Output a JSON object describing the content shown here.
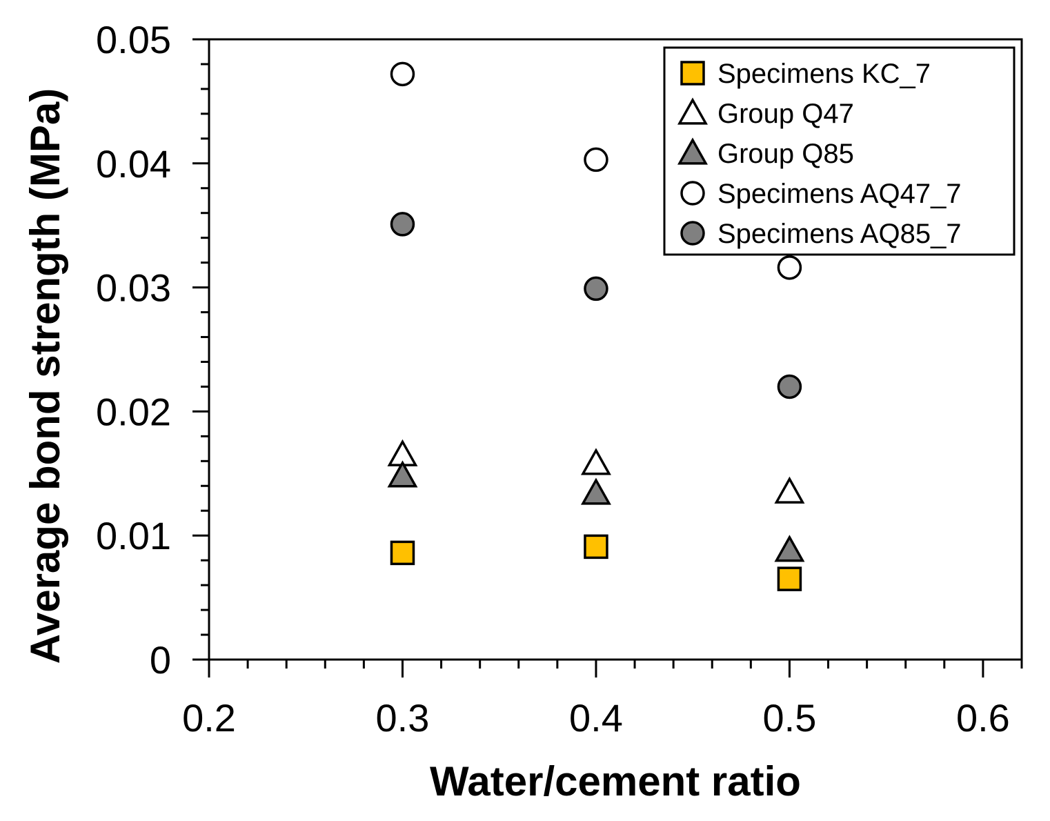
{
  "chart_data": {
    "type": "scatter",
    "title": "",
    "xlabel": "Water/cement ratio",
    "ylabel": "Average bond strength (MPa)",
    "xlim": [
      0.2,
      0.62
    ],
    "ylim": [
      0,
      0.05
    ],
    "x_ticks": [
      "0.2",
      "0.3",
      "0.4",
      "0.5",
      "0.6"
    ],
    "y_ticks": [
      "0",
      "0.01",
      "0.02",
      "0.03",
      "0.04",
      "0.05"
    ],
    "x_tick_values": [
      0.2,
      0.3,
      0.4,
      0.5,
      0.6
    ],
    "y_tick_values": [
      0,
      0.01,
      0.02,
      0.03,
      0.04,
      0.05
    ],
    "x_minor_step": 0.02,
    "y_minor_step": 0.002,
    "grid": false,
    "legend_position": "top-right",
    "series": [
      {
        "name": "Specimens KC_7",
        "marker": "square",
        "color": "#FFC000",
        "x": [
          0.3,
          0.4,
          0.5
        ],
        "y": [
          0.0086,
          0.0091,
          0.0065
        ]
      },
      {
        "name": "Group Q47",
        "marker": "triangle",
        "color": "#FFFFFF",
        "x": [
          0.3,
          0.4,
          0.5
        ],
        "y": [
          0.0165,
          0.0158,
          0.0135
        ]
      },
      {
        "name": "Group Q85",
        "marker": "triangle",
        "color": "#808080",
        "x": [
          0.3,
          0.4,
          0.5
        ],
        "y": [
          0.0148,
          0.0134,
          0.0088
        ]
      },
      {
        "name": "Specimens AQ47_7",
        "marker": "circle",
        "color": "#FFFFFF",
        "x": [
          0.3,
          0.4,
          0.5
        ],
        "y": [
          0.0472,
          0.0403,
          0.0316
        ]
      },
      {
        "name": "Specimens AQ85_7",
        "marker": "circle",
        "color": "#808080",
        "x": [
          0.3,
          0.4,
          0.5
        ],
        "y": [
          0.0351,
          0.0299,
          0.022
        ]
      }
    ]
  }
}
